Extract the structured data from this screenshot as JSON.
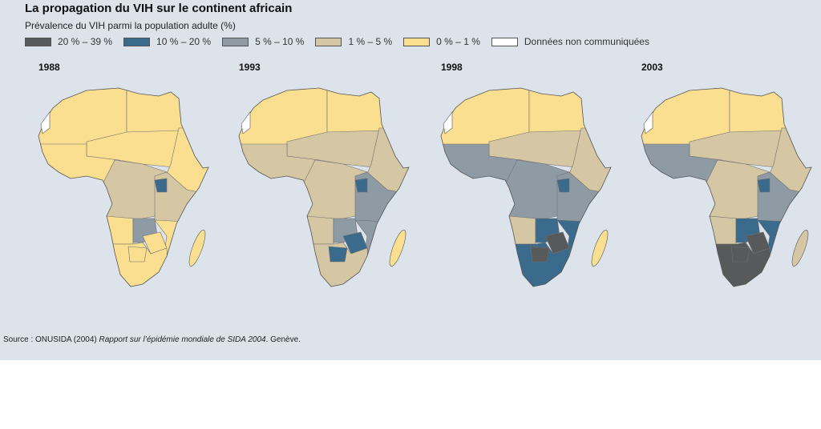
{
  "title": "La propagation du VIH sur le continent africain",
  "subtitle": "Prévalence du VIH parmi la population adulte (%)",
  "legend": [
    {
      "label": "20 % – 39 %",
      "color": "#58595b"
    },
    {
      "label": "10 % – 20 %",
      "color": "#3a6a8c"
    },
    {
      "label": "5 % – 10 %",
      "color": "#8e9ba5"
    },
    {
      "label": "1 % – 5 %",
      "color": "#d6c7a4"
    },
    {
      "label": "0 % – 1 %",
      "color": "#fbdf90"
    },
    {
      "label": "Données non communiquées",
      "color": "#ffffff"
    }
  ],
  "maps": [
    {
      "year": "1988",
      "regions": {
        "nw": 4,
        "north": 4,
        "sahel": 4,
        "west": 4,
        "horn": 4,
        "central": 3,
        "east": 3,
        "uganda": 1,
        "angola": 4,
        "zambia": 2,
        "moz": 4,
        "zim": 4,
        "south": 4,
        "botswana": 4,
        "madagascar": 4
      }
    },
    {
      "year": "1993",
      "regions": {
        "nw": 4,
        "north": 4,
        "sahel": 3,
        "west": 3,
        "horn": 3,
        "central": 3,
        "east": 2,
        "uganda": 1,
        "angola": 3,
        "zambia": 2,
        "moz": 2,
        "zim": 1,
        "south": 3,
        "botswana": 1,
        "madagascar": 4
      }
    },
    {
      "year": "1998",
      "regions": {
        "nw": 4,
        "north": 4,
        "sahel": 3,
        "west": 2,
        "horn": 3,
        "central": 2,
        "east": 2,
        "uganda": 1,
        "angola": 3,
        "zambia": 1,
        "moz": 1,
        "zim": 0,
        "south": 1,
        "botswana": 0,
        "madagascar": 4
      }
    },
    {
      "year": "2003",
      "regions": {
        "nw": 4,
        "north": 4,
        "sahel": 3,
        "west": 2,
        "horn": 3,
        "central": 3,
        "east": 2,
        "uganda": 1,
        "angola": 3,
        "zambia": 1,
        "moz": 1,
        "zim": 0,
        "south": 0,
        "botswana": 0,
        "madagascar": 3
      }
    }
  ],
  "source": {
    "prefix": "Source :  ONUSIDA (2004) ",
    "title": "Rapport sur l’épidémie mondiale de SIDA 2004",
    "suffix": ". Genève."
  }
}
